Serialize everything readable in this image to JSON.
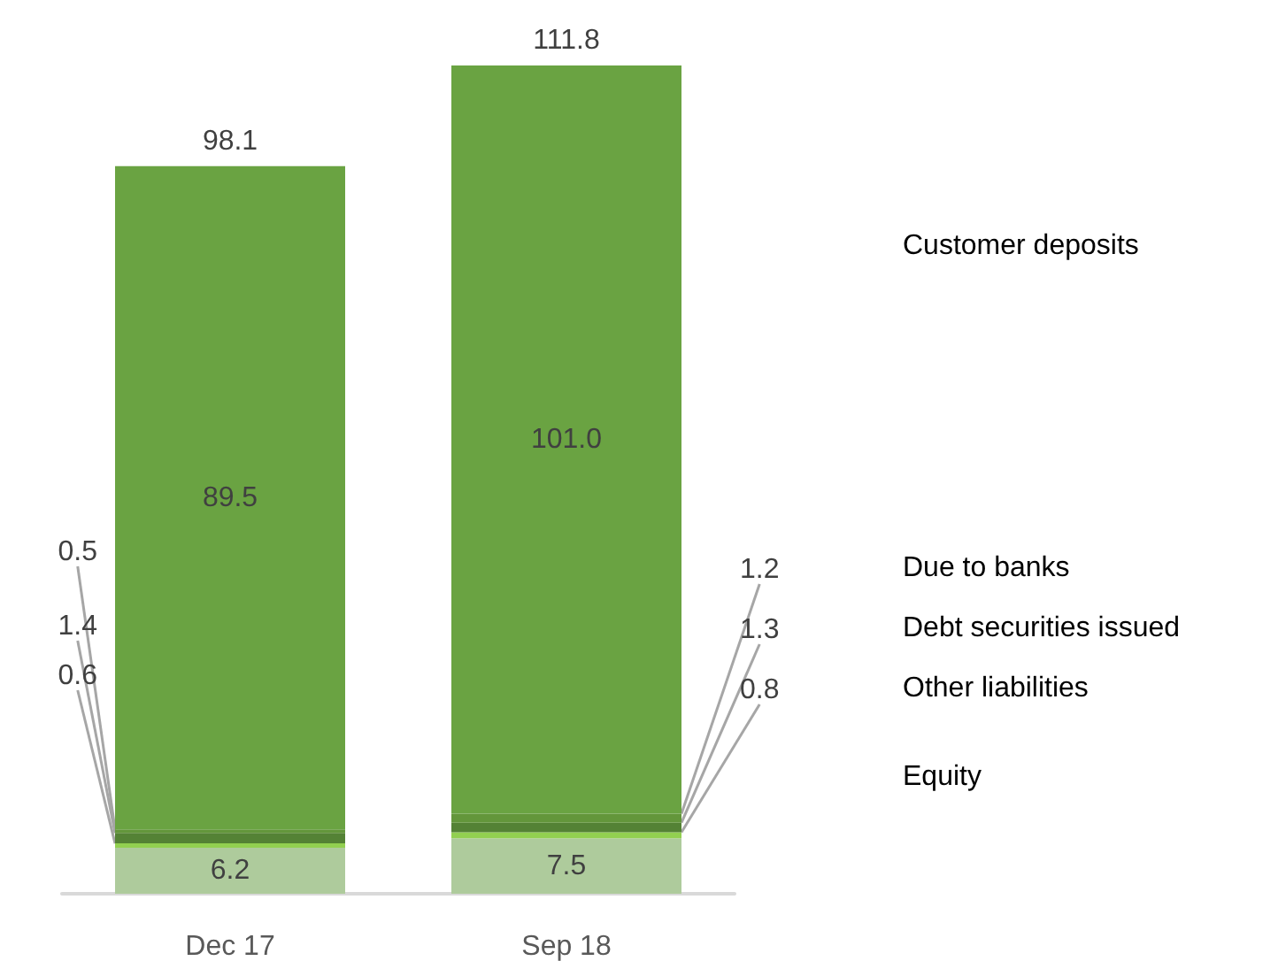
{
  "chart_data": {
    "type": "bar",
    "stacked": true,
    "categories": [
      "Dec 17",
      "Sep 18"
    ],
    "series": [
      {
        "name": "Equity",
        "color": "#aecb9c",
        "values": [
          6.2,
          7.5
        ],
        "value_labels": [
          "6.2",
          "7.5"
        ]
      },
      {
        "name": "Other liabilities",
        "color": "#92d050",
        "values": [
          0.6,
          0.8
        ],
        "value_labels": [
          "0.6",
          "0.8"
        ]
      },
      {
        "name": "Debt securities issued",
        "color": "#548235",
        "values": [
          1.4,
          1.3
        ],
        "value_labels": [
          "1.4",
          "1.3"
        ]
      },
      {
        "name": "Due to banks",
        "color": "#63963b",
        "values": [
          0.5,
          1.2
        ],
        "value_labels": [
          "0.5",
          "1.2"
        ]
      },
      {
        "name": "Customer deposits",
        "color": "#6aa342",
        "values": [
          89.5,
          101.0
        ],
        "value_labels": [
          "89.5",
          "101.0"
        ]
      }
    ],
    "totals": [
      "98.1",
      "111.8"
    ]
  }
}
